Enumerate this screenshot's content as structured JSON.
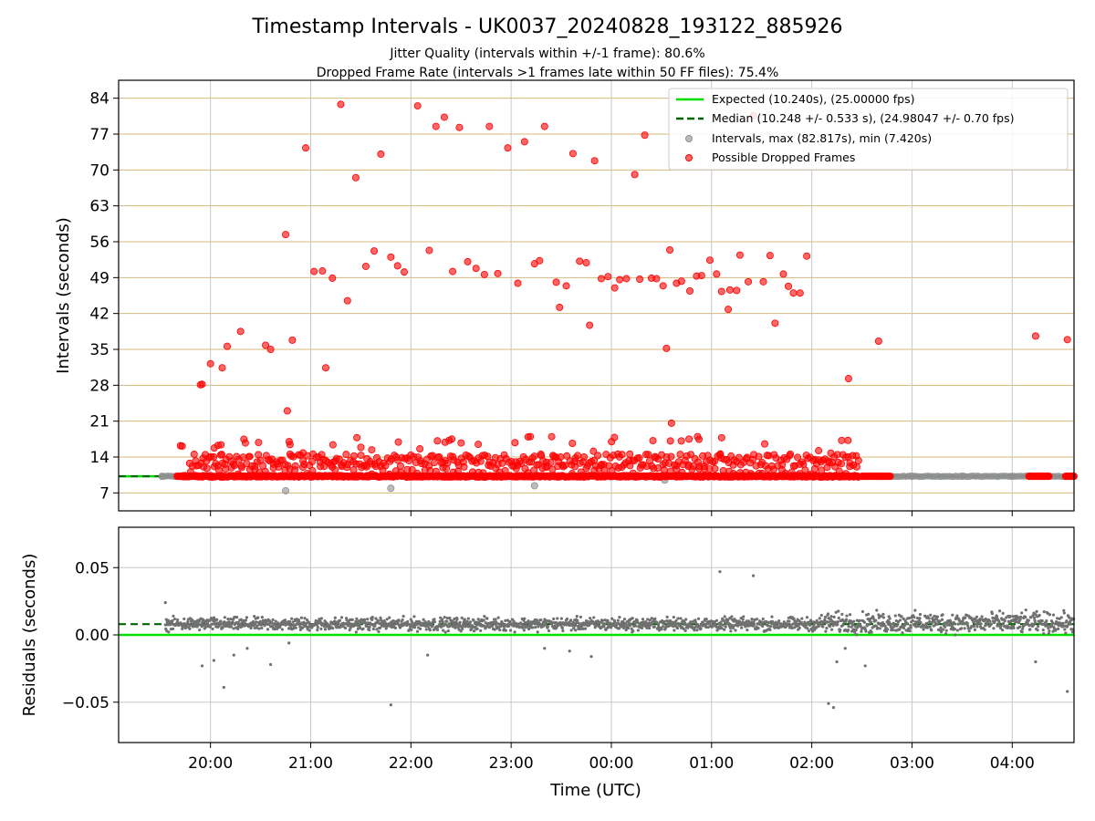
{
  "title": "Timestamp Intervals - UK0037_20240828_193122_885926",
  "subtitle_1": "Jitter Quality (intervals within +/-1 frame): 80.6%",
  "subtitle_2": "Dropped Frame Rate (intervals >1 frames late within 50 FF files): 75.4%",
  "colors": {
    "expected": "#00e000",
    "median": "#006400",
    "intervals": "#909090",
    "dropped": "#ff0000",
    "grid_top": "#d4b87a",
    "grid": "#c8c8c8",
    "residuals": "#707070"
  },
  "chart_data": [
    {
      "type": "scatter",
      "name": "intervals",
      "xlabel": "",
      "ylabel": "Intervals (seconds)",
      "xlim": [
        "19:05",
        "04:37"
      ],
      "ylim": [
        3.5,
        87.5
      ],
      "x_ticks": [
        "20:00",
        "21:00",
        "22:00",
        "23:00",
        "00:00",
        "01:00",
        "02:00",
        "03:00",
        "04:00"
      ],
      "y_ticks": [
        7,
        14,
        21,
        28,
        35,
        42,
        49,
        56,
        63,
        70,
        77,
        84
      ],
      "expected_interval": 10.24,
      "median_interval": 10.248,
      "legend_position": "top-right",
      "legend": [
        "Expected (10.240s), (25.00000 fps)",
        "Median (10.248 +/- 0.533 s), (24.98047 +/- 0.70 fps)",
        "Intervals, max (82.817s), min (7.420s)",
        "Possible Dropped Frames"
      ],
      "series": [
        {
          "name": "Intervals, max (82.817s), min (7.420s)",
          "points": [
            [
              "19:31",
              10.24
            ],
            [
              "20:45",
              7.42
            ],
            [
              "21:48",
              7.9
            ],
            [
              "23:14",
              8.4
            ],
            [
              "00:32",
              9.5
            ],
            [
              "02:40",
              10.24
            ],
            [
              "03:00",
              10.24
            ],
            [
              "03:30",
              10.24
            ],
            [
              "04:00",
              10.24
            ]
          ],
          "baseline_from": "19:31",
          "baseline_to": "04:37"
        },
        {
          "name": "Possible Dropped Frames",
          "points": [
            [
              "19:42",
              16.2
            ],
            [
              "19:54",
              28.1
            ],
            [
              "19:55",
              28.2
            ],
            [
              "20:00",
              32.2
            ],
            [
              "20:07",
              31.4
            ],
            [
              "20:10",
              35.6
            ],
            [
              "20:18",
              38.5
            ],
            [
              "20:33",
              35.8
            ],
            [
              "20:36",
              35.0
            ],
            [
              "20:45",
              57.4
            ],
            [
              "20:46",
              23.0
            ],
            [
              "20:49",
              36.8
            ],
            [
              "20:57",
              74.3
            ],
            [
              "21:02",
              50.2
            ],
            [
              "21:07",
              50.3
            ],
            [
              "21:09",
              31.4
            ],
            [
              "21:13",
              48.9
            ],
            [
              "21:18",
              82.8
            ],
            [
              "21:22",
              44.5
            ],
            [
              "21:27",
              68.5
            ],
            [
              "21:33",
              51.2
            ],
            [
              "21:38",
              54.2
            ],
            [
              "21:42",
              73.1
            ],
            [
              "21:48",
              53.0
            ],
            [
              "21:52",
              51.3
            ],
            [
              "21:56",
              50.1
            ],
            [
              "22:04",
              82.5
            ],
            [
              "22:11",
              54.3
            ],
            [
              "22:15",
              78.5
            ],
            [
              "22:20",
              80.3
            ],
            [
              "22:25",
              50.2
            ],
            [
              "22:29",
              78.3
            ],
            [
              "22:34",
              52.1
            ],
            [
              "22:39",
              50.8
            ],
            [
              "22:44",
              49.6
            ],
            [
              "22:47",
              78.5
            ],
            [
              "22:52",
              49.8
            ],
            [
              "22:58",
              74.3
            ],
            [
              "23:04",
              47.9
            ],
            [
              "23:08",
              75.5
            ],
            [
              "23:14",
              51.7
            ],
            [
              "23:17",
              52.3
            ],
            [
              "23:20",
              78.5
            ],
            [
              "23:27",
              48.1
            ],
            [
              "23:29",
              43.2
            ],
            [
              "23:33",
              47.4
            ],
            [
              "23:37",
              73.2
            ],
            [
              "23:41",
              52.2
            ],
            [
              "23:45",
              51.9
            ],
            [
              "23:47",
              39.7
            ],
            [
              "23:50",
              71.8
            ],
            [
              "23:54",
              48.8
            ],
            [
              "23:58",
              49.2
            ],
            [
              "00:02",
              47.0
            ],
            [
              "00:05",
              48.6
            ],
            [
              "00:09",
              48.8
            ],
            [
              "00:14",
              69.1
            ],
            [
              "00:17",
              48.7
            ],
            [
              "00:20",
              76.8
            ],
            [
              "00:24",
              48.9
            ],
            [
              "00:27",
              48.8
            ],
            [
              "00:31",
              47.4
            ],
            [
              "00:33",
              35.2
            ],
            [
              "00:35",
              54.4
            ],
            [
              "00:36",
              20.6
            ],
            [
              "00:39",
              47.9
            ],
            [
              "00:42",
              48.3
            ],
            [
              "00:47",
              46.4
            ],
            [
              "00:51",
              49.3
            ],
            [
              "00:54",
              49.4
            ],
            [
              "00:59",
              52.4
            ],
            [
              "01:03",
              49.7
            ],
            [
              "01:06",
              46.3
            ],
            [
              "01:10",
              42.8
            ],
            [
              "01:11",
              46.6
            ],
            [
              "01:15",
              46.5
            ],
            [
              "01:17",
              53.4
            ],
            [
              "01:22",
              48.2
            ],
            [
              "01:25",
              80.6
            ],
            [
              "01:31",
              48.2
            ],
            [
              "01:35",
              53.3
            ],
            [
              "01:38",
              40.1
            ],
            [
              "01:43",
              49.7
            ],
            [
              "01:46",
              47.3
            ],
            [
              "01:49",
              46.0
            ],
            [
              "01:53",
              46.0
            ],
            [
              "01:57",
              53.2
            ],
            [
              "02:22",
              29.3
            ],
            [
              "02:40",
              36.6
            ],
            [
              "04:14",
              37.6
            ],
            [
              "04:33",
              36.9
            ]
          ],
          "band": {
            "from": "19:43",
            "to": "02:28",
            "low": 9.8,
            "high": 18.5
          },
          "tail_clusters": [
            [
              "19:40",
              "19:52"
            ],
            [
              "02:30",
              "02:47"
            ],
            [
              "04:10",
              "04:22"
            ],
            [
              "04:32",
              "04:37"
            ]
          ]
        }
      ]
    },
    {
      "type": "scatter",
      "name": "residuals",
      "xlabel": "Time (UTC)",
      "ylabel": "Residuals (seconds)",
      "xlim": [
        "19:05",
        "04:37"
      ],
      "ylim": [
        -0.08,
        0.08
      ],
      "x_ticks": [
        "20:00",
        "21:00",
        "22:00",
        "23:00",
        "00:00",
        "01:00",
        "02:00",
        "03:00",
        "04:00"
      ],
      "y_ticks": [
        "0.05",
        "0.00",
        "−0.05"
      ],
      "y_tick_values": [
        0.05,
        0.0,
        -0.05
      ],
      "expected_residual": 0.0,
      "median_residual": 0.008,
      "outliers": [
        [
          "19:33",
          0.024
        ],
        [
          "19:55",
          -0.023
        ],
        [
          "20:02",
          -0.019
        ],
        [
          "20:08",
          -0.039
        ],
        [
          "20:14",
          -0.015
        ],
        [
          "20:22",
          -0.01
        ],
        [
          "20:36",
          -0.022
        ],
        [
          "20:47",
          -0.006
        ],
        [
          "21:48",
          -0.052
        ],
        [
          "22:10",
          -0.015
        ],
        [
          "23:20",
          -0.01
        ],
        [
          "23:35",
          -0.012
        ],
        [
          "23:48",
          -0.016
        ],
        [
          "01:05",
          0.047
        ],
        [
          "01:25",
          0.044
        ],
        [
          "02:10",
          -0.051
        ],
        [
          "02:13",
          -0.054
        ],
        [
          "02:15",
          -0.02
        ],
        [
          "02:20",
          -0.01
        ],
        [
          "02:32",
          -0.023
        ],
        [
          "04:14",
          -0.02
        ],
        [
          "04:33",
          -0.042
        ]
      ],
      "bands": [
        {
          "from": "19:33",
          "to": "02:05",
          "center": 0.008,
          "spread": 0.007
        },
        {
          "from": "02:05",
          "to": "04:37",
          "center": 0.009,
          "spread": 0.011
        }
      ]
    }
  ]
}
